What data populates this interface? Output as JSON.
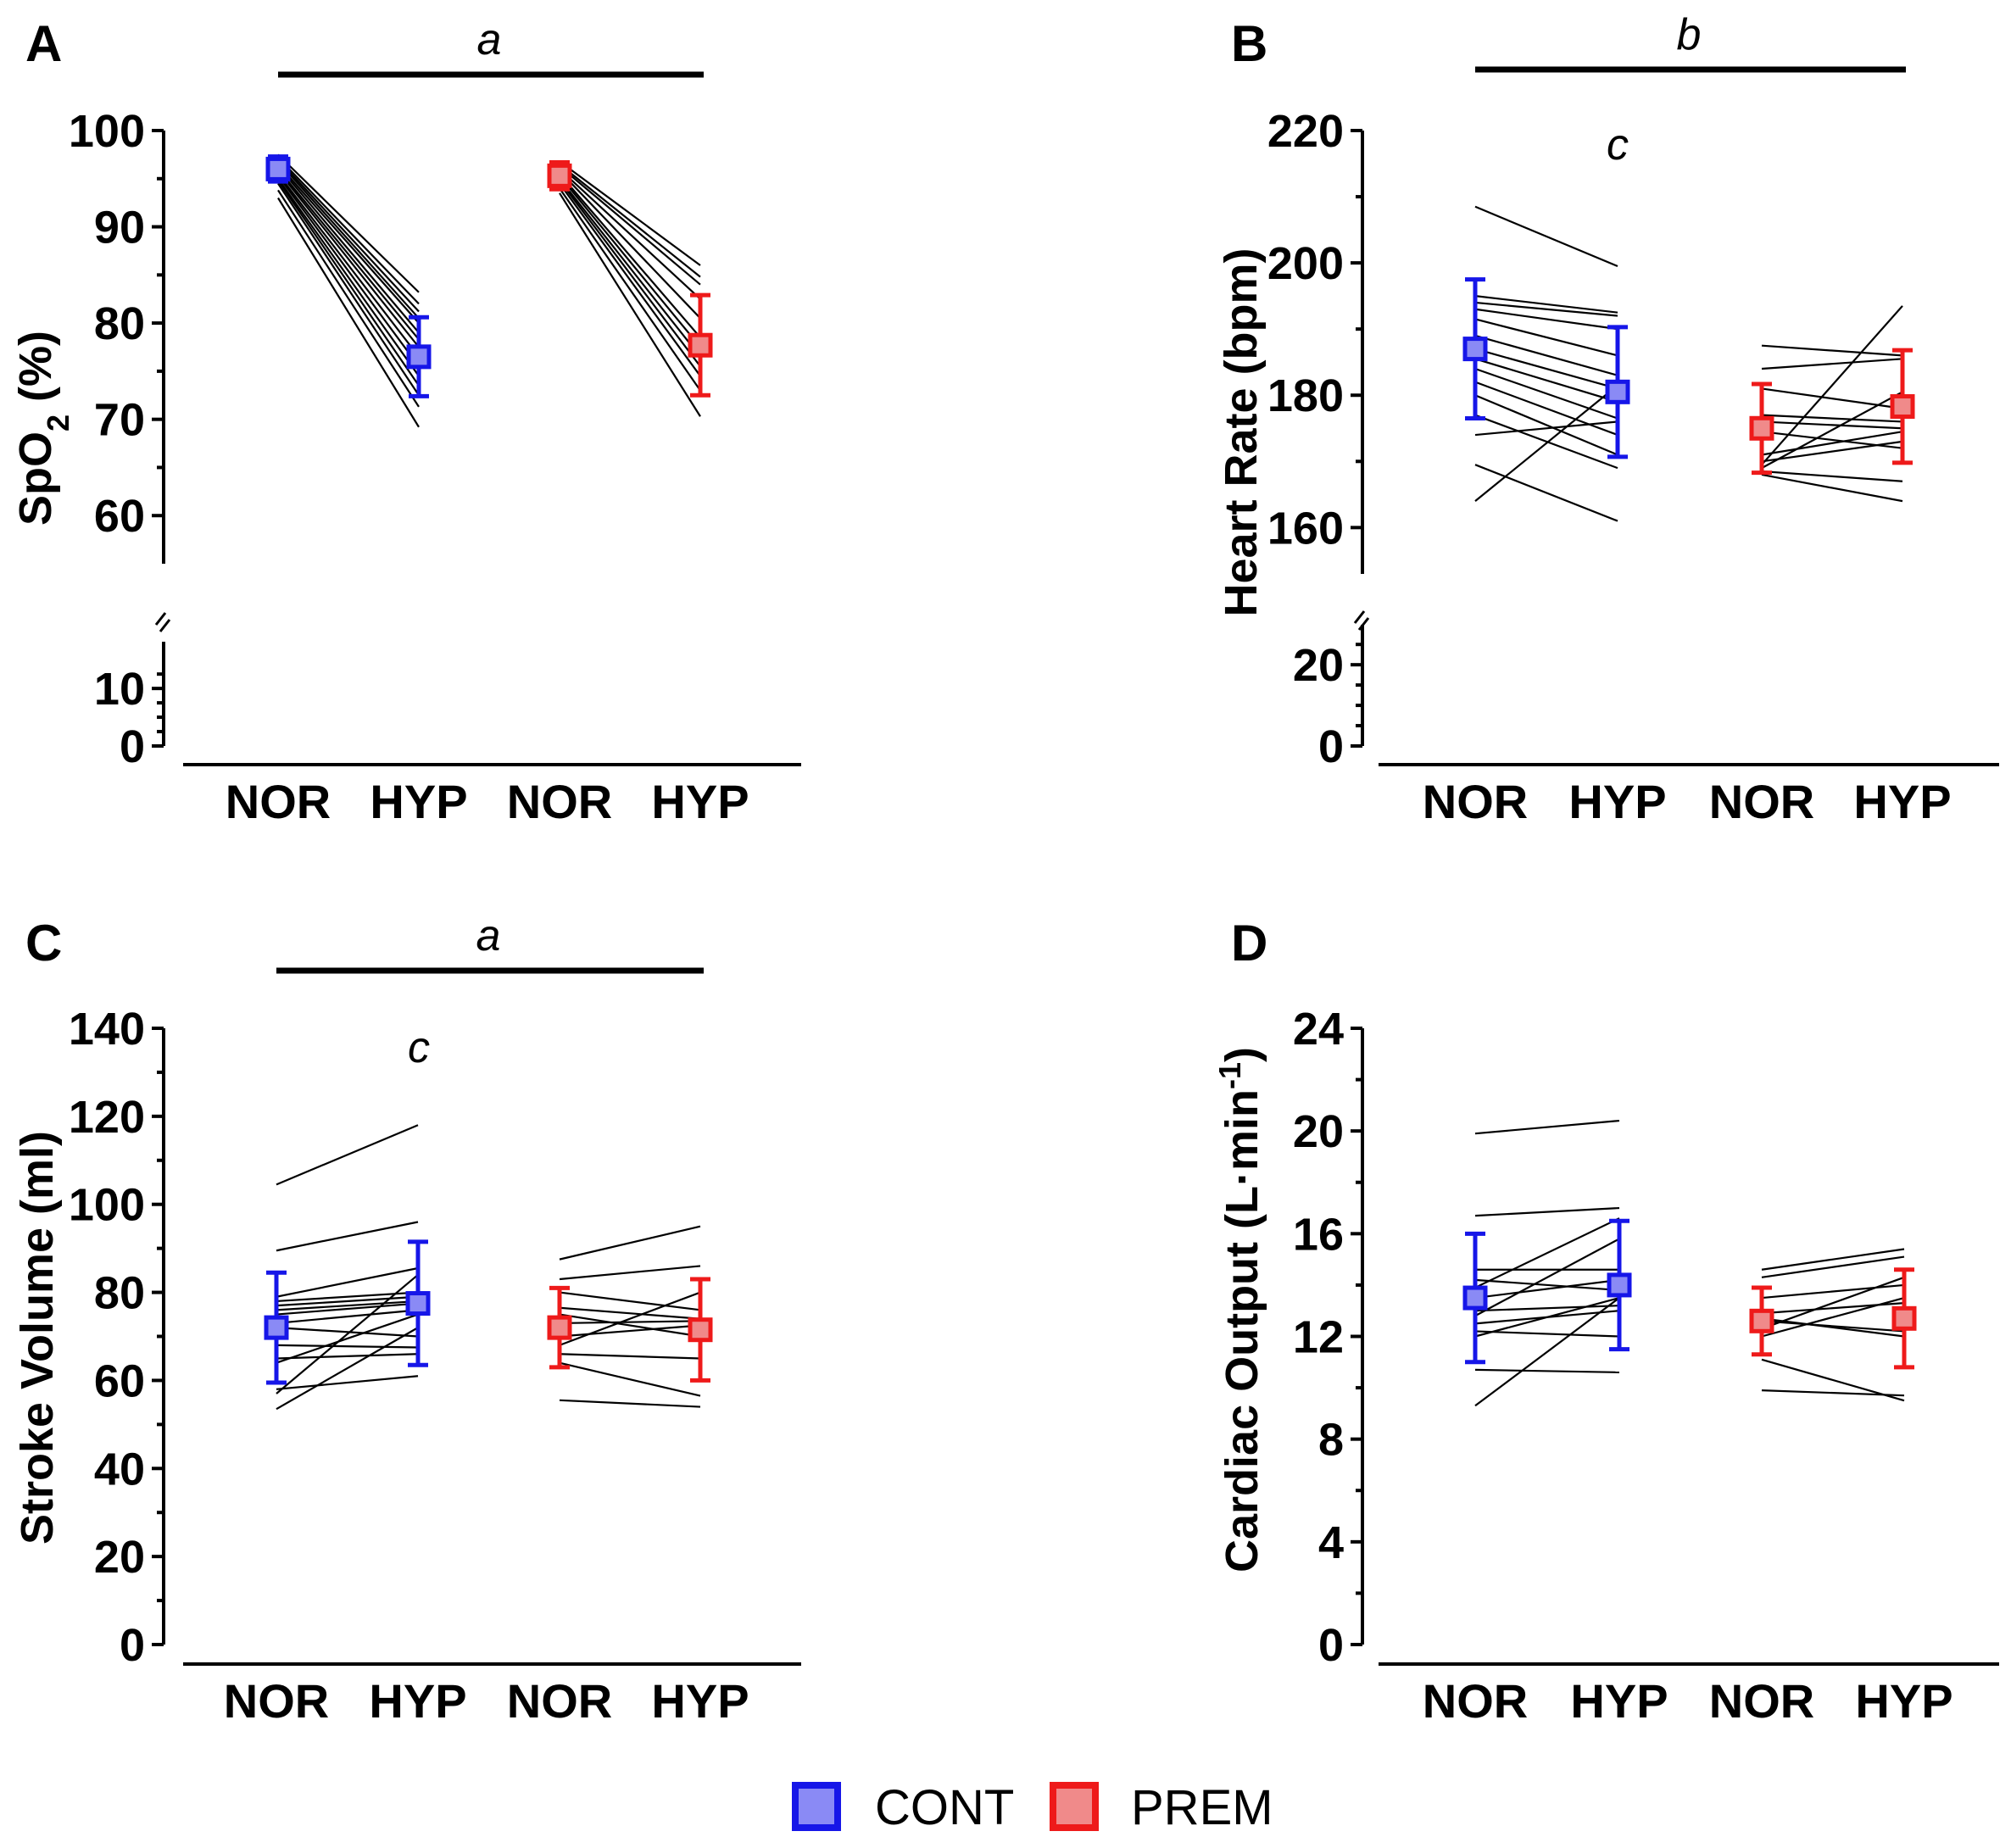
{
  "legend": {
    "items": [
      {
        "label": "CONT",
        "fill": "#8a8af5",
        "stroke": "#1616e8"
      },
      {
        "label": "PREM",
        "fill": "#f08a8a",
        "stroke": "#ee1a1a"
      }
    ]
  },
  "colors": {
    "cont": "#1616e8",
    "cont_fill": "#8a8af5",
    "prem": "#ee1a1a",
    "prem_fill": "#f08a8a",
    "lines": "#000000"
  },
  "chart_data": [
    {
      "panel": "A",
      "type": "scatter",
      "ylabel": "SpO",
      "ylabel_sub": "2",
      "ylabel_tail": " (%)",
      "ylabel_sup": "",
      "categories": [
        "NOR",
        "HYP",
        "NOR",
        "HYP"
      ],
      "yaxis_broken": true,
      "ylim": [
        0,
        100
      ],
      "upper_range": [
        55,
        100
      ],
      "lower_range": [
        0,
        14
      ],
      "yticks_upper": [
        "60",
        "70",
        "80",
        "90",
        "100"
      ],
      "yticks_lower": [
        "0",
        "10"
      ],
      "sig_bar": {
        "label": "a",
        "from": 0,
        "to": 2
      },
      "annotations": [],
      "groups": [
        {
          "name": "CONT",
          "color": "#1616e8",
          "fill": "#8a8af5",
          "means": [
            96.0,
            76.5
          ],
          "errors": [
            1.3,
            4.1
          ],
          "individual": [
            [
              97.5,
              83.2
            ],
            [
              97.2,
              82.0
            ],
            [
              97.0,
              81.2
            ],
            [
              96.8,
              80.5
            ],
            [
              96.5,
              80.0
            ],
            [
              96.3,
              79.0
            ],
            [
              96.0,
              78.3
            ],
            [
              95.8,
              77.5
            ],
            [
              95.5,
              76.5
            ],
            [
              95.3,
              75.5
            ],
            [
              95.0,
              74.5
            ],
            [
              94.8,
              73.5
            ],
            [
              94.5,
              72.5
            ],
            [
              93.8,
              71.3
            ],
            [
              93.0,
              69.2
            ]
          ]
        },
        {
          "name": "PREM",
          "color": "#ee1a1a",
          "fill": "#f08a8a",
          "means": [
            95.3,
            77.7
          ],
          "errors": [
            1.4,
            5.2
          ],
          "individual": [
            [
              96.8,
              86.0
            ],
            [
              96.5,
              84.8
            ],
            [
              96.3,
              84.0
            ],
            [
              96.0,
              82.5
            ],
            [
              95.8,
              80.5
            ],
            [
              95.5,
              78.5
            ],
            [
              95.3,
              77.5
            ],
            [
              95.0,
              76.5
            ],
            [
              94.8,
              75.5
            ],
            [
              94.5,
              74.5
            ],
            [
              94.0,
              73.0
            ],
            [
              93.5,
              70.3
            ]
          ]
        }
      ]
    },
    {
      "panel": "B",
      "type": "scatter",
      "ylabel": "Heart Rate (bpm)",
      "ylabel_sub": "",
      "ylabel_tail": "",
      "ylabel_sup": "",
      "categories": [
        "NOR",
        "HYP",
        "NOR",
        "HYP"
      ],
      "yaxis_broken": true,
      "ylim": [
        0,
        220
      ],
      "upper_range": [
        153,
        220
      ],
      "lower_range": [
        0,
        24
      ],
      "yticks_upper": [
        "160",
        "180",
        "200",
        "220"
      ],
      "yticks_lower": [
        "0",
        "20"
      ],
      "sig_bar": {
        "label": "b",
        "from": 0,
        "to": 2
      },
      "annotations": [
        {
          "label": "c",
          "group": 0,
          "value": 216
        }
      ],
      "groups": [
        {
          "name": "CONT",
          "color": "#1616e8",
          "fill": "#8a8af5",
          "means": [
            187.0,
            180.5
          ],
          "errors": [
            10.5,
            9.8
          ],
          "individual": [
            [
              208.5,
              199.5
            ],
            [
              195.0,
              192.5
            ],
            [
              194.0,
              192.0
            ],
            [
              193.0,
              190.0
            ],
            [
              191.5,
              186.0
            ],
            [
              189.0,
              183.0
            ],
            [
              187.0,
              181.0
            ],
            [
              185.5,
              179.0
            ],
            [
              184.0,
              176.5
            ],
            [
              182.0,
              174.0
            ],
            [
              180.0,
              171.0
            ],
            [
              177.0,
              169.0
            ],
            [
              174.0,
              176.0
            ],
            [
              164.0,
              181.5
            ],
            [
              169.5,
              161.0
            ]
          ]
        },
        {
          "name": "PREM",
          "color": "#ee1a1a",
          "fill": "#f08a8a",
          "means": [
            175.0,
            178.3
          ],
          "errors": [
            6.7,
            8.5
          ],
          "individual": [
            [
              187.5,
              186.0
            ],
            [
              184.0,
              185.5
            ],
            [
              181.0,
              178.0
            ],
            [
              177.0,
              176.0
            ],
            [
              176.0,
              175.0
            ],
            [
              171.0,
              174.5
            ],
            [
              170.0,
              173.0
            ],
            [
              169.5,
              193.5
            ],
            [
              168.5,
              167.0
            ],
            [
              168.0,
              164.0
            ],
            [
              174.5,
              172.0
            ],
            [
              169.0,
              180.5
            ]
          ]
        }
      ]
    },
    {
      "panel": "C",
      "type": "scatter",
      "ylabel": "Stroke Volume (ml)",
      "ylabel_sub": "",
      "ylabel_tail": "",
      "ylabel_sup": "",
      "categories": [
        "NOR",
        "HYP",
        "NOR",
        "HYP"
      ],
      "yaxis_broken": false,
      "ylim": [
        0,
        140
      ],
      "yticks": [
        "0",
        "20",
        "40",
        "60",
        "80",
        "100",
        "120",
        "140"
      ],
      "sig_bar": {
        "label": "a",
        "from": 0,
        "to": 2
      },
      "annotations": [
        {
          "label": "c",
          "group": 0,
          "value": 136
        }
      ],
      "groups": [
        {
          "name": "CONT",
          "color": "#1616e8",
          "fill": "#8a8af5",
          "means": [
            72.0,
            77.5
          ],
          "errors": [
            12.5,
            14.0
          ],
          "individual": [
            [
              104.5,
              118.0
            ],
            [
              89.5,
              96.0
            ],
            [
              79.0,
              85.5
            ],
            [
              78.0,
              80.0
            ],
            [
              77.0,
              79.0
            ],
            [
              76.0,
              78.0
            ],
            [
              75.0,
              77.5
            ],
            [
              73.0,
              76.0
            ],
            [
              72.0,
              70.0
            ],
            [
              68.0,
              67.5
            ],
            [
              65.0,
              66.0
            ],
            [
              64.0,
              75.0
            ],
            [
              58.0,
              61.0
            ],
            [
              57.0,
              84.0
            ],
            [
              53.5,
              72.0
            ]
          ]
        },
        {
          "name": "PREM",
          "color": "#ee1a1a",
          "fill": "#f08a8a",
          "means": [
            72.0,
            71.5
          ],
          "errors": [
            9.0,
            11.5
          ],
          "individual": [
            [
              87.5,
              95.0
            ],
            [
              83.0,
              86.0
            ],
            [
              80.0,
              76.0
            ],
            [
              76.5,
              74.0
            ],
            [
              75.0,
              70.0
            ],
            [
              73.0,
              73.5
            ],
            [
              70.0,
              72.5
            ],
            [
              68.0,
              80.0
            ],
            [
              66.0,
              65.0
            ],
            [
              64.0,
              56.5
            ],
            [
              55.5,
              54.0
            ]
          ]
        }
      ]
    },
    {
      "panel": "D",
      "type": "scatter",
      "ylabel": "Cardiac Output (L·min",
      "ylabel_sub": "",
      "ylabel_tail": ")",
      "ylabel_sup": "-1",
      "categories": [
        "NOR",
        "HYP",
        "NOR",
        "HYP"
      ],
      "yaxis_broken": false,
      "ylim": [
        0,
        24
      ],
      "yticks": [
        "0",
        "4",
        "8",
        "12",
        "16",
        "20",
        "24"
      ],
      "sig_bar": null,
      "annotations": [],
      "groups": [
        {
          "name": "CONT",
          "color": "#1616e8",
          "fill": "#8a8af5",
          "means": [
            13.5,
            14.0
          ],
          "errors": [
            2.5,
            2.5
          ],
          "individual": [
            [
              19.9,
              20.4
            ],
            [
              16.7,
              17.0
            ],
            [
              14.6,
              14.6
            ],
            [
              14.2,
              13.8
            ],
            [
              13.9,
              16.6
            ],
            [
              13.5,
              14.2
            ],
            [
              13.0,
              13.2
            ],
            [
              12.8,
              15.8
            ],
            [
              12.5,
              13.0
            ],
            [
              12.2,
              12.0
            ],
            [
              12.0,
              13.5
            ],
            [
              10.7,
              10.6
            ],
            [
              9.3,
              13.5
            ]
          ]
        },
        {
          "name": "PREM",
          "color": "#ee1a1a",
          "fill": "#f08a8a",
          "means": [
            12.6,
            12.7
          ],
          "errors": [
            1.3,
            1.9
          ],
          "individual": [
            [
              14.6,
              15.4
            ],
            [
              14.3,
              15.1
            ],
            [
              13.5,
              14.0
            ],
            [
              12.9,
              13.3
            ],
            [
              12.6,
              12.2
            ],
            [
              12.3,
              14.3
            ],
            [
              12.0,
              13.5
            ],
            [
              11.1,
              9.5
            ],
            [
              9.9,
              9.7
            ],
            [
              12.7,
              12.0
            ]
          ]
        }
      ]
    }
  ]
}
